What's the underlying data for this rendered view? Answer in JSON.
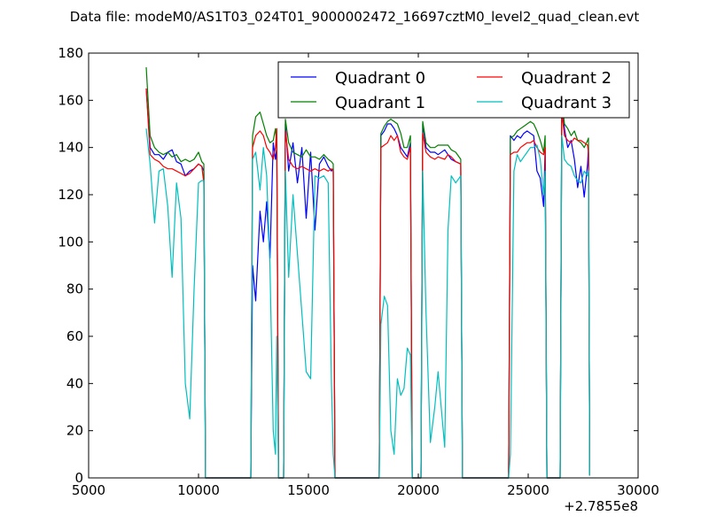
{
  "chart_data": {
    "type": "line",
    "title": "Data file: modeM0/AS1T03_024T01_9000002472_16697cztM0_level2_quad_clean.evt",
    "xlabel": "",
    "ylabel": "",
    "x_offset_label": "+2.7855e8",
    "xlim": [
      5000,
      30000
    ],
    "ylim": [
      0,
      180
    ],
    "xticks": [
      5000,
      10000,
      15000,
      20000,
      25000,
      30000
    ],
    "xtick_labels": [
      "5000",
      "10000",
      "15000",
      "20000",
      "25000",
      "30000"
    ],
    "yticks": [
      0,
      20,
      40,
      60,
      80,
      100,
      120,
      140,
      160,
      180
    ],
    "ytick_labels": [
      "0",
      "20",
      "40",
      "60",
      "80",
      "100",
      "120",
      "140",
      "160",
      "180"
    ],
    "grid": false,
    "legend": {
      "placement": "top-right",
      "columns": 2
    },
    "series": [
      {
        "name": "Quadrant 0",
        "color": "#0000ff"
      },
      {
        "name": "Quadrant 1",
        "color": "#008000"
      },
      {
        "name": "Quadrant 2",
        "color": "#ff0000"
      },
      {
        "name": "Quadrant 3",
        "color": "#00bfbf"
      }
    ],
    "gap_value": 0,
    "final_point": [
      27800,
      1
    ],
    "segments": [
      {
        "x": [
          7620,
          7800,
          8000,
          8200,
          8400,
          8600,
          8800,
          9000,
          9200,
          9400,
          9600,
          9800,
          10000,
          10150,
          10240
        ],
        "values": [
          [
            165,
            140,
            137,
            137,
            135,
            138,
            139,
            134,
            133,
            128,
            130,
            131,
            133,
            132,
            130
          ],
          [
            174,
            145,
            140,
            138,
            137,
            138,
            136,
            137,
            134,
            135,
            134,
            135,
            138,
            134,
            133
          ],
          [
            165,
            137,
            135,
            134,
            132,
            131,
            131,
            130,
            129,
            128,
            129,
            131,
            133,
            132,
            125
          ],
          [
            148,
            133,
            108,
            130,
            131,
            115,
            85,
            125,
            110,
            40,
            25,
            80,
            125,
            126,
            126
          ]
        ]
      },
      {
        "x": [
          12460,
          12600,
          12800,
          12950,
          13100,
          13250,
          13400,
          13500,
          13560
        ],
        "values": [
          [
            90,
            75,
            113,
            100,
            117,
            93,
            142,
            135,
            140
          ],
          [
            145,
            153,
            155,
            150,
            145,
            142,
            143,
            148,
            140
          ],
          [
            140,
            145,
            147,
            145,
            140,
            138,
            135,
            140,
            148
          ],
          [
            135,
            138,
            122,
            140,
            128,
            90,
            20,
            10,
            60
          ]
        ]
      },
      {
        "x": [
          13950,
          14100,
          14300,
          14500,
          14700,
          14900,
          15100,
          15300,
          15500,
          15700,
          15900,
          16050,
          16130
        ],
        "values": [
          [
            150,
            130,
            142,
            125,
            140,
            110,
            138,
            105,
            133,
            136,
            132,
            130,
            131
          ],
          [
            152,
            142,
            138,
            137,
            136,
            139,
            136,
            136,
            135,
            137,
            135,
            134,
            133
          ],
          [
            147,
            135,
            132,
            131,
            132,
            131,
            130,
            131,
            130,
            131,
            130,
            131,
            130
          ],
          [
            130,
            85,
            120,
            95,
            70,
            45,
            42,
            128,
            127,
            128,
            125,
            40,
            10
          ]
        ]
      },
      {
        "x": [
          18300,
          18450,
          18600,
          18750,
          18900,
          19050,
          19200,
          19350,
          19500,
          19640
        ],
        "values": [
          [
            145,
            147,
            150,
            150,
            148,
            145,
            140,
            138,
            136,
            142
          ],
          [
            146,
            149,
            151,
            152,
            151,
            150,
            146,
            140,
            140,
            145
          ],
          [
            140,
            141,
            142,
            145,
            143,
            145,
            138,
            136,
            135,
            140
          ],
          [
            65,
            77,
            73,
            20,
            10,
            42,
            35,
            38,
            55,
            52
          ]
        ]
      },
      {
        "x": [
          20200,
          20350,
          20550,
          20750,
          20900,
          21200,
          21350,
          21500,
          21700,
          21930
        ],
        "values": [
          [
            150,
            140,
            138,
            138,
            137,
            139,
            137,
            135,
            134,
            133
          ],
          [
            151,
            142,
            140,
            140,
            141,
            141,
            141,
            139,
            138,
            135
          ],
          [
            146,
            138,
            136,
            135,
            136,
            135,
            137,
            136,
            134,
            133
          ],
          [
            130,
            70,
            15,
            30,
            45,
            13,
            105,
            128,
            125,
            128
          ]
        ]
      },
      {
        "x": [
          24190,
          24350,
          24500,
          24650,
          24800,
          24950,
          25100,
          25250,
          25400,
          25550,
          25700,
          25770
        ],
        "values": [
          [
            145,
            143,
            145,
            144,
            146,
            147,
            146,
            145,
            130,
            127,
            115,
            140
          ],
          [
            144,
            145,
            147,
            148,
            149,
            150,
            151,
            150,
            147,
            143,
            138,
            145
          ],
          [
            137,
            138,
            138,
            140,
            141,
            142,
            142,
            143,
            140,
            138,
            137,
            140
          ],
          [
            10,
            130,
            137,
            134,
            136,
            138,
            140,
            140,
            141,
            135,
            120,
            130
          ]
        ]
      },
      {
        "x": [
          26530,
          26650,
          26800,
          26950,
          27100,
          27250,
          27400,
          27550,
          27700,
          27740
        ],
        "values": [
          [
            160,
            148,
            140,
            143,
            135,
            123,
            132,
            119,
            133,
            140
          ],
          [
            160,
            150,
            148,
            145,
            147,
            143,
            142,
            140,
            143,
            144
          ],
          [
            155,
            145,
            143,
            142,
            144,
            143,
            143,
            142,
            141,
            138
          ],
          [
            145,
            135,
            133,
            132,
            128,
            126,
            125,
            130,
            128,
            130
          ]
        ]
      }
    ]
  }
}
